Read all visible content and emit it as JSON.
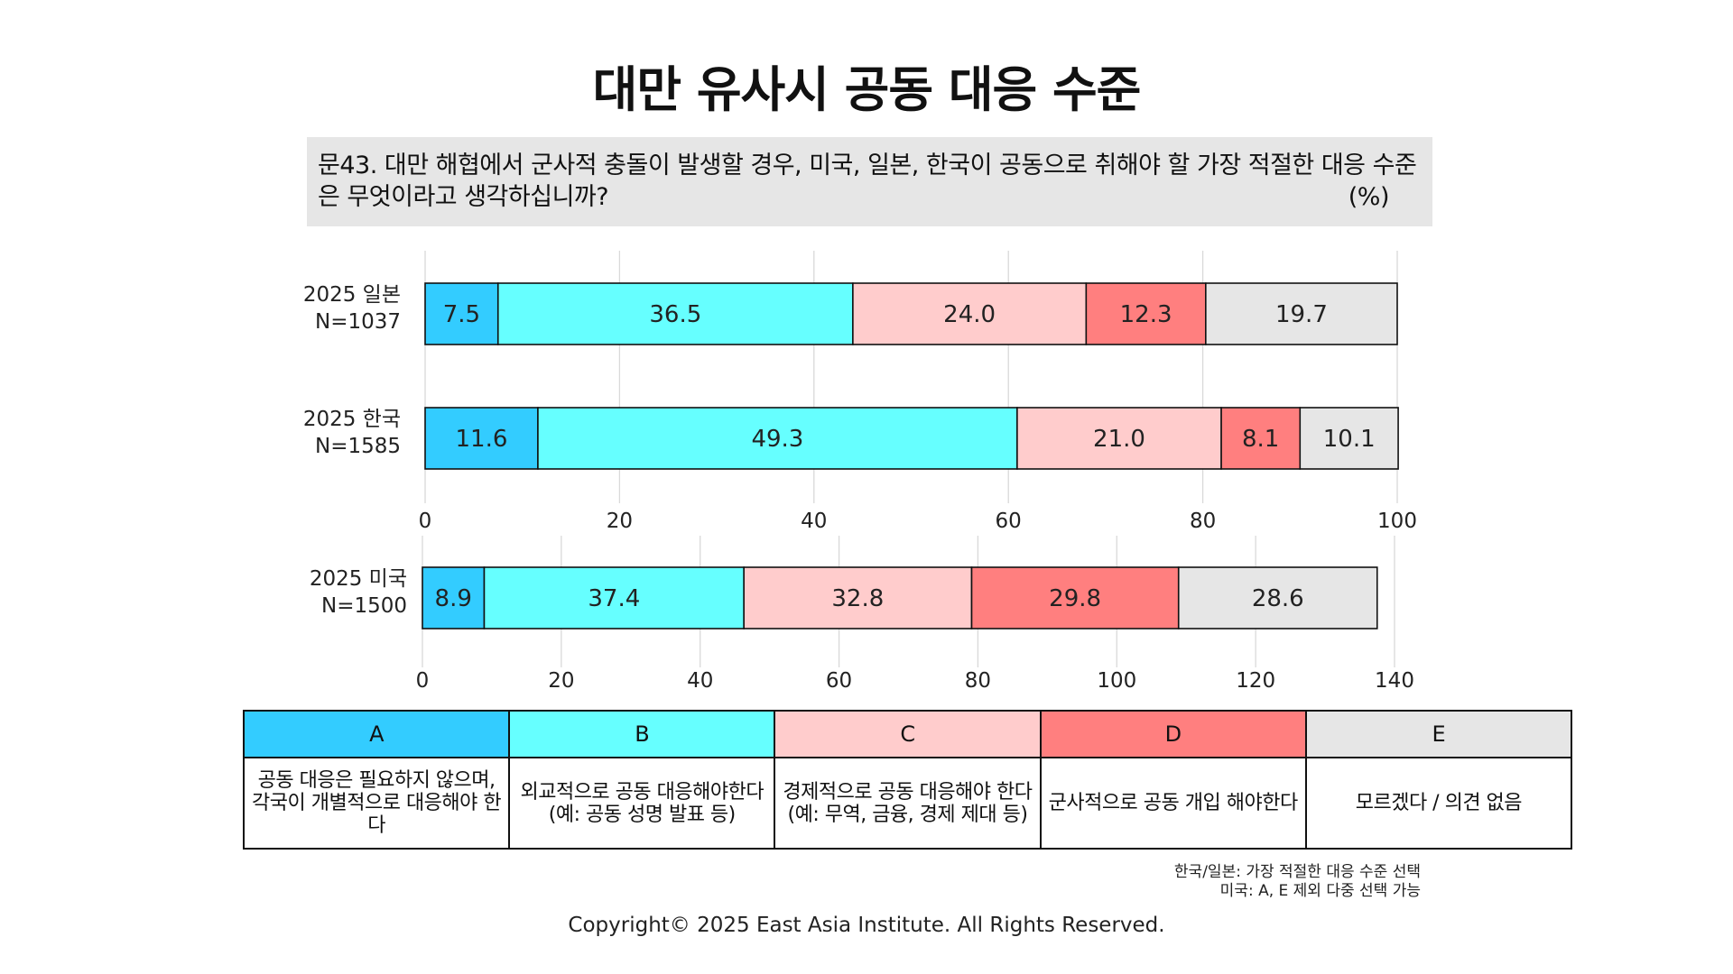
{
  "title": "대만 유사시 공동 대응 수준",
  "question": "문43. 대만 해협에서 군사적 충돌이 발생할 경우, 미국, 일본, 한국이 공동으로 취해야 할 가장 적절한 대응 수준은 무엇이라고 생각하십니까?",
  "unit": "(%)",
  "colors": {
    "A": "#33ccff",
    "B": "#66ffff",
    "C": "#ffcccc",
    "D": "#ff7f7f",
    "E": "#e6e6e6"
  },
  "chart_data": [
    {
      "type": "bar",
      "orientation": "horizontal",
      "stacked": true,
      "categories": [
        "2025 일본\nN=1037",
        "2025 한국\nN=1585"
      ],
      "series": [
        {
          "name": "A",
          "values": [
            7.5,
            11.6
          ]
        },
        {
          "name": "B",
          "values": [
            36.5,
            49.3
          ]
        },
        {
          "name": "C",
          "values": [
            24.0,
            21.0
          ]
        },
        {
          "name": "D",
          "values": [
            12.3,
            8.1
          ]
        },
        {
          "name": "E",
          "values": [
            19.7,
            10.1
          ]
        }
      ],
      "xlim": [
        0,
        100
      ],
      "xticks": [
        0,
        20,
        40,
        60,
        80,
        100
      ],
      "grid": true
    },
    {
      "type": "bar",
      "orientation": "horizontal",
      "stacked": true,
      "categories": [
        "2025 미국\nN=1500"
      ],
      "series": [
        {
          "name": "A",
          "values": [
            8.9
          ]
        },
        {
          "name": "B",
          "values": [
            37.4
          ]
        },
        {
          "name": "C",
          "values": [
            32.8
          ]
        },
        {
          "name": "D",
          "values": [
            29.8
          ]
        },
        {
          "name": "E",
          "values": [
            28.6
          ]
        }
      ],
      "xlim": [
        0,
        140
      ],
      "xticks": [
        0,
        20,
        40,
        60,
        80,
        100,
        120,
        140
      ],
      "grid": true
    }
  ],
  "legend": {
    "headers": [
      "A",
      "B",
      "C",
      "D",
      "E"
    ],
    "descriptions": [
      "공동 대응은 필요하지 않으며, 각국이 개별적으로 대응해야 한다",
      "외교적으로 공동 대응해야한다 (예: 공동 성명 발표 등)",
      "경제적으로 공동 대응해야 한다 (예: 무역, 금융, 경제 제대 등)",
      "군사적으로 공동 개입 해야한다",
      "모르겠다 / 의견 없음"
    ]
  },
  "notes": [
    "한국/일본: 가장 적절한 대응 수준 선택",
    "미국: A, E 제외 다중 선택 가능"
  ],
  "copyright": "Copyright© 2025 East Asia Institute. All Rights Reserved."
}
